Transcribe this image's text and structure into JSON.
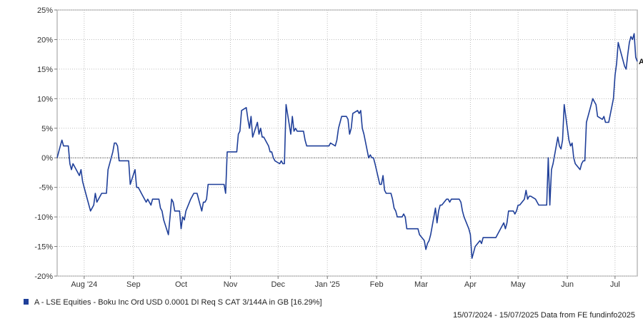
{
  "chart_data": {
    "type": "line",
    "ylim": [
      -20,
      25
    ],
    "yticks": [
      "25%",
      "20%",
      "15%",
      "10%",
      "5%",
      "0%",
      "-5%",
      "-10%",
      "-15%",
      "-20%"
    ],
    "yticks_values": [
      25,
      20,
      15,
      10,
      5,
      0,
      -5,
      -10,
      -15,
      -20
    ],
    "x_range": [
      "2024-07-15",
      "2025-07-15"
    ],
    "xticks": [
      {
        "label": "Aug '24",
        "date": "2024-08-01"
      },
      {
        "label": "Sep",
        "date": "2024-09-01"
      },
      {
        "label": "Oct",
        "date": "2024-10-01"
      },
      {
        "label": "Nov",
        "date": "2024-11-01"
      },
      {
        "label": "Dec",
        "date": "2024-12-01"
      },
      {
        "label": "Jan '25",
        "date": "2025-01-01"
      },
      {
        "label": "Feb",
        "date": "2025-02-01"
      },
      {
        "label": "Mar",
        "date": "2025-03-01"
      },
      {
        "label": "Apr",
        "date": "2025-04-01"
      },
      {
        "label": "May",
        "date": "2025-05-01"
      },
      {
        "label": "Jun",
        "date": "2025-06-01"
      },
      {
        "label": "Jul",
        "date": "2025-07-01"
      }
    ],
    "grid": true,
    "zero_line": true,
    "series": [
      {
        "name": "A - LSE Equities - Boku Inc Ord USD 0.0001 DI Req S CAT 3/144A in GB [16.29%]",
        "end_label": "A",
        "color": "#1f3f99",
        "points": [
          [
            "2024-07-15",
            0
          ],
          [
            "2024-07-17",
            2
          ],
          [
            "2024-07-18",
            3
          ],
          [
            "2024-07-19",
            2
          ],
          [
            "2024-07-22",
            2
          ],
          [
            "2024-07-23",
            -1
          ],
          [
            "2024-07-24",
            -2
          ],
          [
            "2024-07-25",
            -1
          ],
          [
            "2024-07-26",
            -1.5
          ],
          [
            "2024-07-29",
            -3
          ],
          [
            "2024-07-30",
            -2
          ],
          [
            "2024-07-31",
            -4
          ],
          [
            "2024-08-02",
            -6
          ],
          [
            "2024-08-05",
            -9
          ],
          [
            "2024-08-06",
            -8.5
          ],
          [
            "2024-08-07",
            -8
          ],
          [
            "2024-08-08",
            -6
          ],
          [
            "2024-08-09",
            -7.5
          ],
          [
            "2024-08-12",
            -6
          ],
          [
            "2024-08-13",
            -6
          ],
          [
            "2024-08-14",
            -6
          ],
          [
            "2024-08-15",
            -6
          ],
          [
            "2024-08-16",
            -2
          ],
          [
            "2024-08-19",
            1
          ],
          [
            "2024-08-20",
            2.5
          ],
          [
            "2024-08-21",
            2.5
          ],
          [
            "2024-08-22",
            2
          ],
          [
            "2024-08-23",
            -0.5
          ],
          [
            "2024-08-26",
            -0.5
          ],
          [
            "2024-08-27",
            -0.5
          ],
          [
            "2024-08-28",
            -0.5
          ],
          [
            "2024-08-29",
            -0.5
          ],
          [
            "2024-08-30",
            -4.5
          ],
          [
            "2024-09-02",
            -2
          ],
          [
            "2024-09-03",
            -5
          ],
          [
            "2024-09-04",
            -5
          ],
          [
            "2024-09-05",
            -5.5
          ],
          [
            "2024-09-06",
            -6
          ],
          [
            "2024-09-09",
            -7.5
          ],
          [
            "2024-09-10",
            -7
          ],
          [
            "2024-09-11",
            -7.5
          ],
          [
            "2024-09-12",
            -8
          ],
          [
            "2024-09-13",
            -7
          ],
          [
            "2024-09-16",
            -7
          ],
          [
            "2024-09-17",
            -7
          ],
          [
            "2024-09-18",
            -8.5
          ],
          [
            "2024-09-19",
            -9
          ],
          [
            "2024-09-20",
            -10.5
          ],
          [
            "2024-09-23",
            -13
          ],
          [
            "2024-09-24",
            -10
          ],
          [
            "2024-09-25",
            -7
          ],
          [
            "2024-09-26",
            -7.5
          ],
          [
            "2024-09-27",
            -9
          ],
          [
            "2024-09-30",
            -9
          ],
          [
            "2024-10-01",
            -12
          ],
          [
            "2024-10-02",
            -10
          ],
          [
            "2024-10-03",
            -10.5
          ],
          [
            "2024-10-04",
            -9
          ],
          [
            "2024-10-07",
            -7
          ],
          [
            "2024-10-08",
            -6.5
          ],
          [
            "2024-10-09",
            -6
          ],
          [
            "2024-10-10",
            -6
          ],
          [
            "2024-10-11",
            -6
          ],
          [
            "2024-10-14",
            -9
          ],
          [
            "2024-10-15",
            -7.5
          ],
          [
            "2024-10-16",
            -7.5
          ],
          [
            "2024-10-17",
            -7
          ],
          [
            "2024-10-18",
            -4.5
          ],
          [
            "2024-10-21",
            -4.5
          ],
          [
            "2024-10-22",
            -4.5
          ],
          [
            "2024-10-23",
            -4.5
          ],
          [
            "2024-10-24",
            -4.5
          ],
          [
            "2024-10-25",
            -4.5
          ],
          [
            "2024-10-28",
            -4.5
          ],
          [
            "2024-10-29",
            -6
          ],
          [
            "2024-10-30",
            1
          ],
          [
            "2024-10-31",
            1
          ],
          [
            "2024-11-01",
            1
          ],
          [
            "2024-11-04",
            1
          ],
          [
            "2024-11-05",
            1
          ],
          [
            "2024-11-06",
            4
          ],
          [
            "2024-11-07",
            4.5
          ],
          [
            "2024-11-08",
            8
          ],
          [
            "2024-11-11",
            8.5
          ],
          [
            "2024-11-12",
            6.5
          ],
          [
            "2024-11-13",
            5
          ],
          [
            "2024-11-14",
            7
          ],
          [
            "2024-11-15",
            3.5
          ],
          [
            "2024-11-18",
            6
          ],
          [
            "2024-11-19",
            4
          ],
          [
            "2024-11-20",
            5
          ],
          [
            "2024-11-21",
            3.5
          ],
          [
            "2024-11-22",
            3.5
          ],
          [
            "2024-11-25",
            2
          ],
          [
            "2024-11-26",
            1
          ],
          [
            "2024-11-27",
            1
          ],
          [
            "2024-11-28",
            0
          ],
          [
            "2024-11-29",
            -0.5
          ],
          [
            "2024-12-02",
            -1
          ],
          [
            "2024-12-03",
            -0.5
          ],
          [
            "2024-12-04",
            -1
          ],
          [
            "2024-12-05",
            -1
          ],
          [
            "2024-12-06",
            9
          ],
          [
            "2024-12-09",
            4
          ],
          [
            "2024-12-10",
            7
          ],
          [
            "2024-12-11",
            4.5
          ],
          [
            "2024-12-12",
            5
          ],
          [
            "2024-12-13",
            4.5
          ],
          [
            "2024-12-16",
            4.5
          ],
          [
            "2024-12-17",
            4.5
          ],
          [
            "2024-12-18",
            3
          ],
          [
            "2024-12-19",
            2
          ],
          [
            "2024-12-20",
            2
          ],
          [
            "2024-12-23",
            2
          ],
          [
            "2024-12-24",
            2
          ],
          [
            "2024-12-27",
            2
          ],
          [
            "2024-12-30",
            2
          ],
          [
            "2024-12-31",
            2
          ],
          [
            "2025-01-02",
            2
          ],
          [
            "2025-01-03",
            2.5
          ],
          [
            "2025-01-06",
            2
          ],
          [
            "2025-01-07",
            3
          ],
          [
            "2025-01-08",
            5
          ],
          [
            "2025-01-09",
            6
          ],
          [
            "2025-01-10",
            7
          ],
          [
            "2025-01-13",
            7
          ],
          [
            "2025-01-14",
            6.5
          ],
          [
            "2025-01-15",
            4
          ],
          [
            "2025-01-16",
            5
          ],
          [
            "2025-01-17",
            7.5
          ],
          [
            "2025-01-20",
            8
          ],
          [
            "2025-01-21",
            7.5
          ],
          [
            "2025-01-22",
            8
          ],
          [
            "2025-01-23",
            5
          ],
          [
            "2025-01-24",
            4
          ],
          [
            "2025-01-27",
            0
          ],
          [
            "2025-01-28",
            0.5
          ],
          [
            "2025-01-29",
            0
          ],
          [
            "2025-01-30",
            0
          ],
          [
            "2025-01-31",
            -1
          ],
          [
            "2025-02-03",
            -4.5
          ],
          [
            "2025-02-04",
            -4.5
          ],
          [
            "2025-02-05",
            -3
          ],
          [
            "2025-02-06",
            -5.5
          ],
          [
            "2025-02-07",
            -6
          ],
          [
            "2025-02-10",
            -6
          ],
          [
            "2025-02-11",
            -7
          ],
          [
            "2025-02-12",
            -8.5
          ],
          [
            "2025-02-13",
            -9
          ],
          [
            "2025-02-14",
            -10
          ],
          [
            "2025-02-17",
            -10
          ],
          [
            "2025-02-18",
            -9.5
          ],
          [
            "2025-02-19",
            -10
          ],
          [
            "2025-02-20",
            -12
          ],
          [
            "2025-02-21",
            -12
          ],
          [
            "2025-02-24",
            -12
          ],
          [
            "2025-02-25",
            -12
          ],
          [
            "2025-02-26",
            -12
          ],
          [
            "2025-02-27",
            -12
          ],
          [
            "2025-02-28",
            -13
          ],
          [
            "2025-03-03",
            -14
          ],
          [
            "2025-03-04",
            -15.5
          ],
          [
            "2025-03-05",
            -14.5
          ],
          [
            "2025-03-06",
            -14
          ],
          [
            "2025-03-07",
            -13
          ],
          [
            "2025-03-10",
            -8.5
          ],
          [
            "2025-03-11",
            -11
          ],
          [
            "2025-03-12",
            -9
          ],
          [
            "2025-03-13",
            -8
          ],
          [
            "2025-03-14",
            -8
          ],
          [
            "2025-03-17",
            -7
          ],
          [
            "2025-03-18",
            -7
          ],
          [
            "2025-03-19",
            -7.5
          ],
          [
            "2025-03-20",
            -7
          ],
          [
            "2025-03-21",
            -7
          ],
          [
            "2025-03-24",
            -7
          ],
          [
            "2025-03-25",
            -7
          ],
          [
            "2025-03-26",
            -7.5
          ],
          [
            "2025-03-27",
            -9
          ],
          [
            "2025-03-28",
            -10
          ],
          [
            "2025-03-31",
            -12
          ],
          [
            "2025-04-01",
            -13
          ],
          [
            "2025-04-02",
            -17
          ],
          [
            "2025-04-03",
            -16
          ],
          [
            "2025-04-04",
            -15
          ],
          [
            "2025-04-07",
            -14
          ],
          [
            "2025-04-08",
            -14.5
          ],
          [
            "2025-04-09",
            -13.5
          ],
          [
            "2025-04-10",
            -13.5
          ],
          [
            "2025-04-11",
            -13.5
          ],
          [
            "2025-04-14",
            -13.5
          ],
          [
            "2025-04-15",
            -13.5
          ],
          [
            "2025-04-16",
            -13.5
          ],
          [
            "2025-04-17",
            -13.5
          ],
          [
            "2025-04-22",
            -11
          ],
          [
            "2025-04-23",
            -12
          ],
          [
            "2025-04-24",
            -11
          ],
          [
            "2025-04-25",
            -9
          ],
          [
            "2025-04-28",
            -9
          ],
          [
            "2025-04-29",
            -9.5
          ],
          [
            "2025-04-30",
            -9
          ],
          [
            "2025-05-01",
            -8
          ],
          [
            "2025-05-02",
            -8
          ],
          [
            "2025-05-05",
            -7
          ],
          [
            "2025-05-06",
            -5.5
          ],
          [
            "2025-05-07",
            -7
          ],
          [
            "2025-05-08",
            -6.5
          ],
          [
            "2025-05-09",
            -6.5
          ],
          [
            "2025-05-12",
            -7
          ],
          [
            "2025-05-13",
            -7.5
          ],
          [
            "2025-05-14",
            -8
          ],
          [
            "2025-05-15",
            -8
          ],
          [
            "2025-05-16",
            -8
          ],
          [
            "2025-05-19",
            -8
          ],
          [
            "2025-05-20",
            0
          ],
          [
            "2025-05-21",
            -8
          ],
          [
            "2025-05-22",
            -2
          ],
          [
            "2025-05-23",
            -1
          ],
          [
            "2025-05-26",
            3.5
          ],
          [
            "2025-05-27",
            2
          ],
          [
            "2025-05-28",
            1.5
          ],
          [
            "2025-05-29",
            3
          ],
          [
            "2025-05-30",
            9
          ],
          [
            "2025-06-02",
            3
          ],
          [
            "2025-06-03",
            2
          ],
          [
            "2025-06-04",
            2.5
          ],
          [
            "2025-06-05",
            0
          ],
          [
            "2025-06-06",
            -1
          ],
          [
            "2025-06-09",
            -2
          ],
          [
            "2025-06-10",
            -1
          ],
          [
            "2025-06-11",
            -0.5
          ],
          [
            "2025-06-12",
            -0.5
          ],
          [
            "2025-06-13",
            6
          ],
          [
            "2025-06-16",
            9
          ],
          [
            "2025-06-17",
            10
          ],
          [
            "2025-06-18",
            9.5
          ],
          [
            "2025-06-19",
            9
          ],
          [
            "2025-06-20",
            7
          ],
          [
            "2025-06-23",
            6.5
          ],
          [
            "2025-06-24",
            7
          ],
          [
            "2025-06-25",
            6
          ],
          [
            "2025-06-26",
            6
          ],
          [
            "2025-06-27",
            6
          ],
          [
            "2025-06-30",
            10
          ],
          [
            "2025-07-01",
            14
          ],
          [
            "2025-07-02",
            16
          ],
          [
            "2025-07-03",
            19.5
          ],
          [
            "2025-07-04",
            18.5
          ],
          [
            "2025-07-07",
            15.5
          ],
          [
            "2025-07-08",
            15
          ],
          [
            "2025-07-09",
            17.5
          ],
          [
            "2025-07-10",
            19.5
          ],
          [
            "2025-07-11",
            20.5
          ],
          [
            "2025-07-12",
            20
          ],
          [
            "2025-07-13",
            21
          ],
          [
            "2025-07-14",
            17
          ],
          [
            "2025-07-15",
            16.29
          ]
        ]
      }
    ]
  },
  "legend": {
    "label": "A - LSE Equities - Boku Inc Ord USD 0.0001 DI Req S CAT 3/144A in GB [16.29%]",
    "color": "#1f3f99"
  },
  "footer": {
    "text": "15/07/2024 - 15/07/2025 Data from FE fundinfo2025"
  }
}
